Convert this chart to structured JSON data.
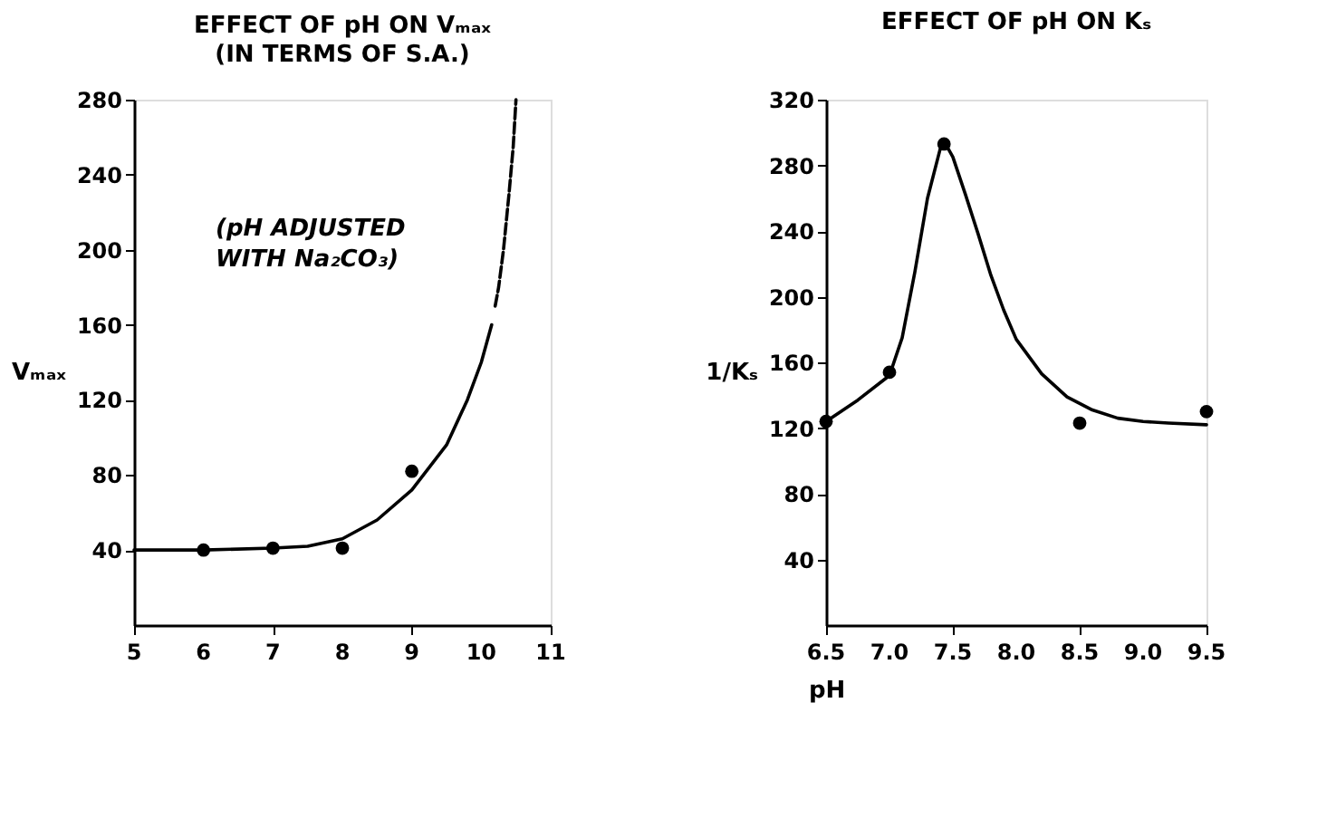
{
  "chart_data": [
    {
      "type": "scatter",
      "title": "EFFECT OF pH ON Vₘₐₓ",
      "subtitle": "(IN TERMS OF S.A.)",
      "ylabel": "Vₘₐₓ",
      "xlim": [
        5,
        11
      ],
      "xticks": [
        5,
        6,
        7,
        8,
        9,
        10,
        11
      ],
      "ylim": [
        0,
        280
      ],
      "yticks": [
        40,
        80,
        120,
        160,
        200,
        240,
        280
      ],
      "grid": false,
      "annotations": [
        "(pH ADJUSTED WITH Na₂CO₃)"
      ],
      "series": [
        {
          "type": "scatter",
          "marker": "circle",
          "color": "#000000",
          "x": [
            6,
            7,
            8,
            9
          ],
          "values": [
            40,
            41,
            41,
            82
          ]
        },
        {
          "type": "line",
          "line_style": "solid",
          "marker": "none",
          "color": "#000000",
          "x": [
            5,
            6,
            7,
            7.5,
            8,
            8.5,
            9,
            9.5,
            9.8,
            10,
            10.15
          ],
          "values": [
            40,
            40,
            41,
            42,
            46,
            56,
            72,
            96,
            120,
            140,
            160
          ]
        },
        {
          "type": "line",
          "line_style": "dashed",
          "marker": "none",
          "color": "#000000",
          "x": [
            10.2,
            10.25,
            10.32,
            10.4,
            10.46,
            10.5
          ],
          "values": [
            170,
            180,
            200,
            230,
            255,
            280
          ]
        }
      ]
    },
    {
      "type": "scatter",
      "title": "EFFECT OF pH ON Kₛ",
      "xlabel": "pH",
      "ylabel": "1/Kₛ",
      "xlim": [
        6.5,
        9.5
      ],
      "xticks": [
        6.5,
        {
          "value": 7,
          "label": "7.0"
        },
        7.5,
        {
          "value": 8,
          "label": "8.0"
        },
        8.5,
        {
          "value": 9,
          "label": "9.0"
        },
        9.5
      ],
      "ylim": [
        0,
        320
      ],
      "yticks": [
        40,
        80,
        120,
        160,
        200,
        240,
        280,
        320
      ],
      "grid": false,
      "series": [
        {
          "type": "scatter",
          "marker": "circle",
          "color": "#000000",
          "x": [
            6.5,
            7.0,
            7.43,
            8.5,
            9.5
          ],
          "values": [
            124,
            154,
            293,
            123,
            130
          ]
        },
        {
          "type": "line",
          "line_style": "solid",
          "marker": "none",
          "color": "#000000",
          "x": [
            6.5,
            6.75,
            7.0,
            7.1,
            7.2,
            7.3,
            7.4,
            7.45,
            7.5,
            7.6,
            7.7,
            7.8,
            7.9,
            8.0,
            8.2,
            8.4,
            8.6,
            8.8,
            9.0,
            9.2,
            9.5
          ],
          "values": [
            124,
            137,
            152,
            175,
            215,
            260,
            290,
            292,
            285,
            262,
            238,
            213,
            192,
            174,
            153,
            139,
            131,
            126,
            124,
            123,
            122
          ]
        }
      ]
    }
  ]
}
